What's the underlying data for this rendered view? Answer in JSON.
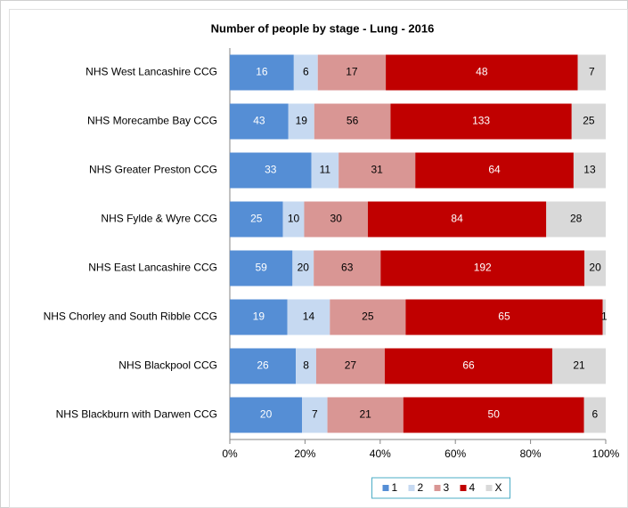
{
  "chart_data": {
    "type": "bar",
    "orientation": "horizontal",
    "stacking": "percent",
    "title": "Number of people by stage - Lung - 2016",
    "categories": [
      "NHS West Lancashire CCG",
      "NHS Morecambe Bay CCG",
      "NHS Greater Preston CCG",
      "NHS Fylde & Wyre CCG",
      "NHS East Lancashire CCG",
      "NHS Chorley and South Ribble CCG",
      "NHS Blackpool CCG",
      "NHS Blackburn with Darwen CCG"
    ],
    "series": [
      {
        "name": "1",
        "color": "#558ed5",
        "label_color": "#ffffff",
        "values": [
          16,
          43,
          33,
          25,
          59,
          19,
          26,
          20
        ]
      },
      {
        "name": "2",
        "color": "#c6d9f1",
        "label_color": "#000000",
        "values": [
          6,
          19,
          11,
          10,
          20,
          14,
          8,
          7
        ]
      },
      {
        "name": "3",
        "color": "#d99694",
        "label_color": "#000000",
        "values": [
          17,
          56,
          31,
          30,
          63,
          25,
          27,
          21
        ]
      },
      {
        "name": "4",
        "color": "#c00000",
        "label_color": "#ffffff",
        "values": [
          48,
          133,
          64,
          84,
          192,
          65,
          66,
          50
        ]
      },
      {
        "name": "X",
        "color": "#d9d9d9",
        "label_color": "#000000",
        "values": [
          7,
          25,
          13,
          28,
          20,
          1,
          21,
          6
        ]
      }
    ],
    "xlim": [
      0,
      100
    ],
    "xticks": [
      {
        "value": 0,
        "label": "0%"
      },
      {
        "value": 20,
        "label": "20%"
      },
      {
        "value": 40,
        "label": "40%"
      },
      {
        "value": 60,
        "label": "60%"
      },
      {
        "value": 80,
        "label": "80%"
      },
      {
        "value": 100,
        "label": "100%"
      }
    ],
    "legend": "bottom"
  }
}
